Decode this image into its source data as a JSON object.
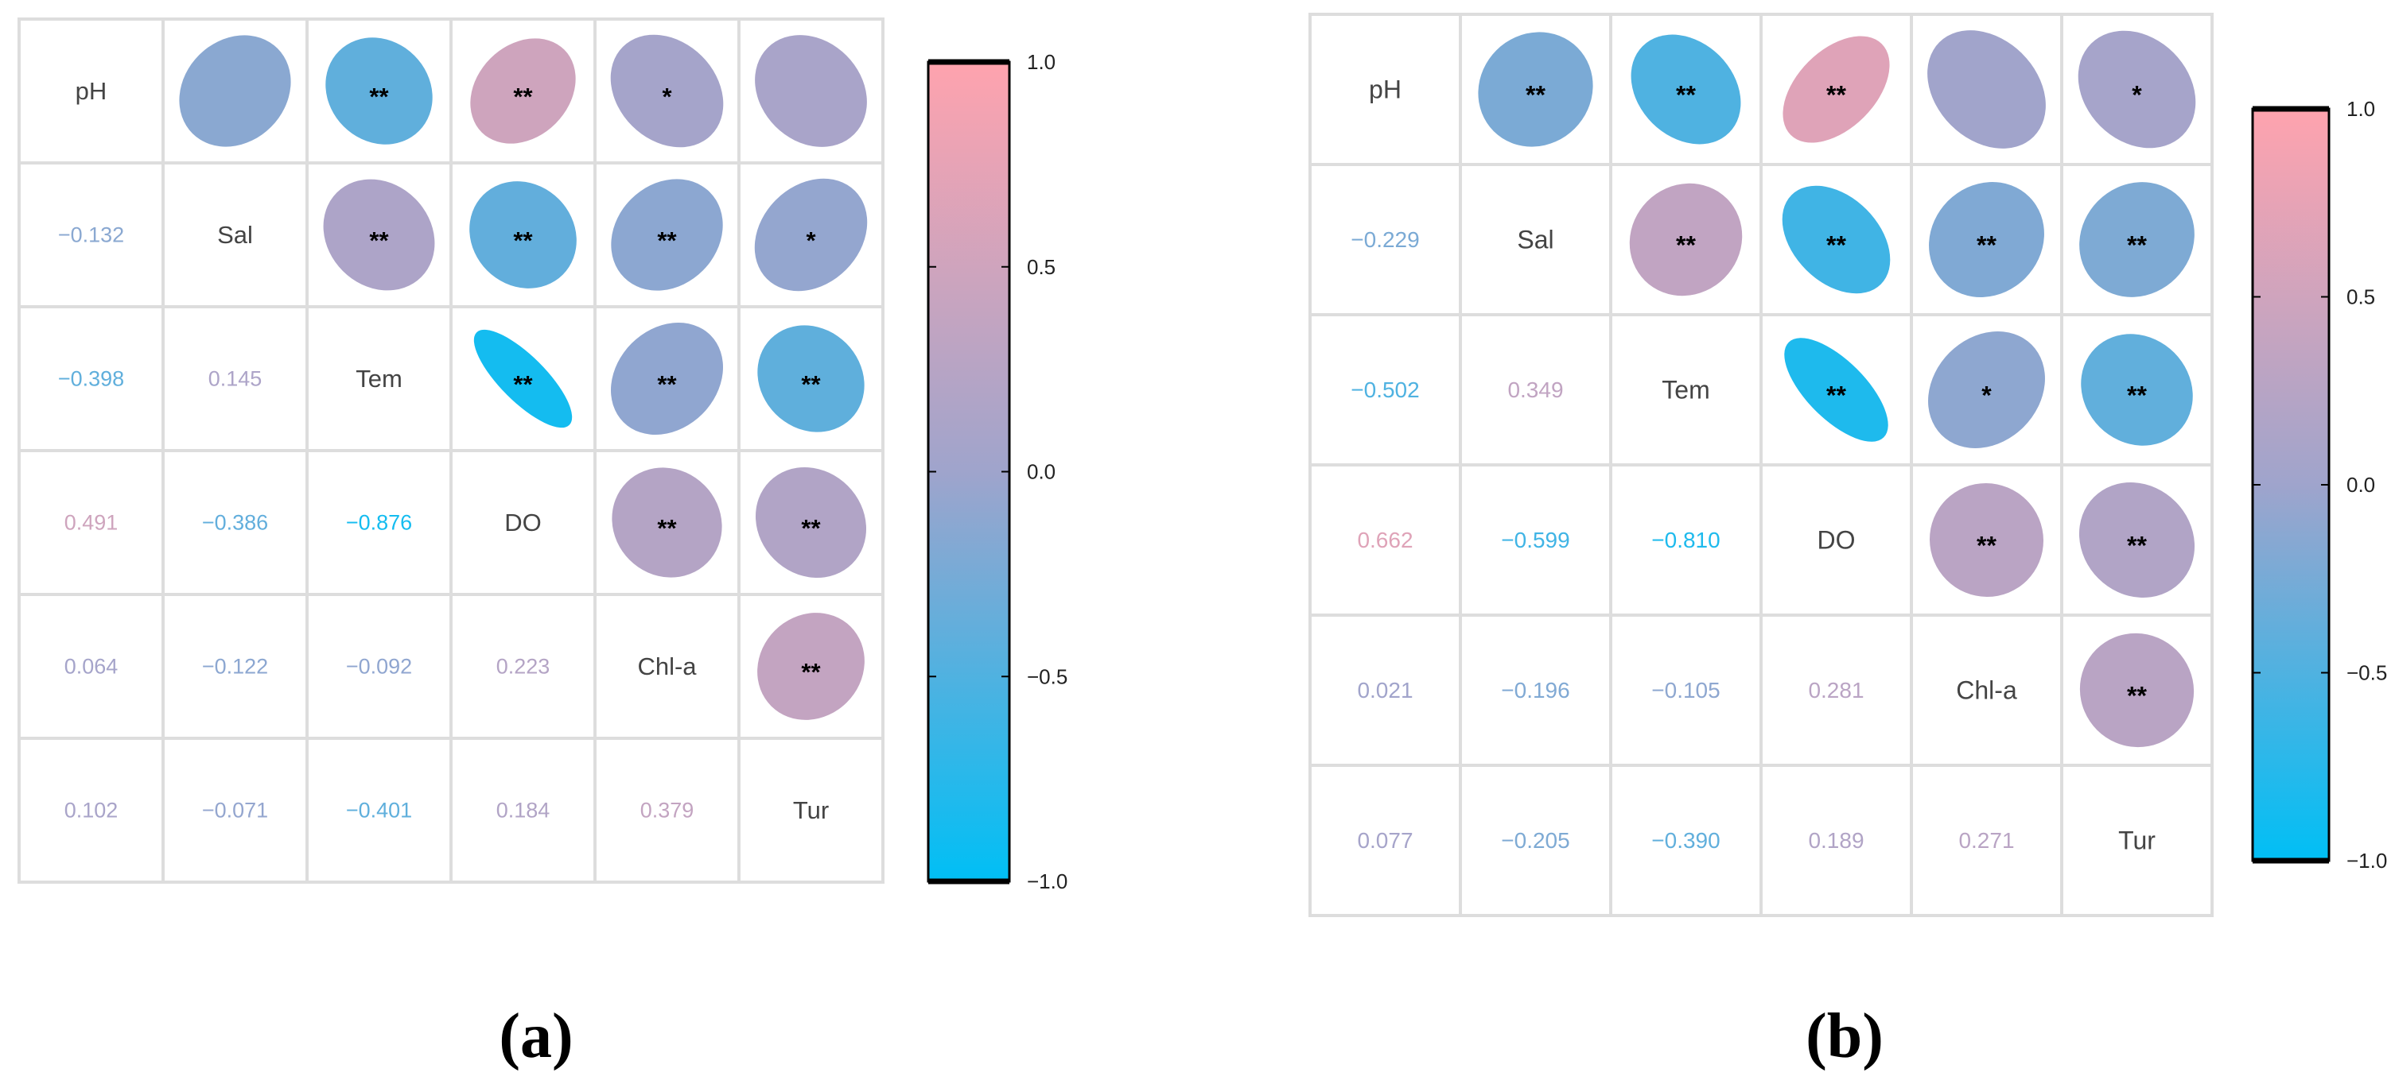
{
  "colors": {
    "negative": "#00BFF5",
    "neutral": "#9FA4CC",
    "positive": "#FFA3AE",
    "grid": "#DDDDDD",
    "diag_text": "#444444"
  },
  "chart_data": [
    {
      "type": "heatmap",
      "subtype": "correlation-matrix-ellipse",
      "panel_label": "(a)",
      "variables": [
        "pH",
        "Sal",
        "Tem",
        "DO",
        "Chl-a",
        "Tur"
      ],
      "lower_values": [
        [
          null,
          null,
          null,
          null,
          null,
          null
        ],
        [
          -0.132,
          null,
          null,
          null,
          null,
          null
        ],
        [
          -0.398,
          0.145,
          null,
          null,
          null,
          null
        ],
        [
          0.491,
          -0.386,
          -0.876,
          null,
          null,
          null
        ],
        [
          0.064,
          -0.122,
          -0.092,
          0.223,
          null,
          null
        ],
        [
          0.102,
          -0.071,
          -0.401,
          0.184,
          0.379,
          null
        ]
      ],
      "lower_labels": [
        [
          null,
          null,
          null,
          null,
          null,
          null
        ],
        [
          "−0.132",
          null,
          null,
          null,
          null,
          null
        ],
        [
          "−0.398",
          "0.145",
          null,
          null,
          null,
          null
        ],
        [
          "0.491",
          "−0.386",
          "−0.876",
          null,
          null,
          null
        ],
        [
          "0.064",
          "−0.122",
          "−0.092",
          "0.223",
          null,
          null
        ],
        [
          "0.102",
          "−0.071",
          "−0.401",
          "0.184",
          "0.379",
          null
        ]
      ],
      "upper_significance": [
        [
          null,
          "",
          "**",
          "**",
          "*",
          ""
        ],
        [
          null,
          null,
          "**",
          "**",
          "**",
          "*"
        ],
        [
          null,
          null,
          null,
          "**",
          "**",
          "**"
        ],
        [
          null,
          null,
          null,
          null,
          "**",
          "**"
        ],
        [
          null,
          null,
          null,
          null,
          null,
          "**"
        ],
        [
          null,
          null,
          null,
          null,
          null,
          null
        ]
      ],
      "colorbar": {
        "range": [
          -1.0,
          1.0
        ],
        "ticks": [
          1.0,
          0.5,
          0.0,
          -0.5,
          -1.0
        ],
        "tick_labels": [
          "1.0",
          "0.5",
          "0.0",
          "−0.5",
          "−1.0"
        ]
      }
    },
    {
      "type": "heatmap",
      "subtype": "correlation-matrix-ellipse",
      "panel_label": "(b)",
      "variables": [
        "pH",
        "Sal",
        "Tem",
        "DO",
        "Chl-a",
        "Tur"
      ],
      "lower_values": [
        [
          null,
          null,
          null,
          null,
          null,
          null
        ],
        [
          -0.229,
          null,
          null,
          null,
          null,
          null
        ],
        [
          -0.502,
          0.349,
          null,
          null,
          null,
          null
        ],
        [
          0.662,
          -0.599,
          -0.81,
          null,
          null,
          null
        ],
        [
          0.021,
          -0.196,
          -0.105,
          0.281,
          null,
          null
        ],
        [
          0.077,
          -0.205,
          -0.39,
          0.189,
          0.271,
          null
        ]
      ],
      "lower_labels": [
        [
          null,
          null,
          null,
          null,
          null,
          null
        ],
        [
          "−0.229",
          null,
          null,
          null,
          null,
          null
        ],
        [
          "−0.502",
          "0.349",
          null,
          null,
          null,
          null
        ],
        [
          "0.662",
          "−0.599",
          "−0.810",
          null,
          null,
          null
        ],
        [
          "0.021",
          "−0.196",
          "−0.105",
          "0.281",
          null,
          null
        ],
        [
          "0.077",
          "−0.205",
          "−0.390",
          "0.189",
          "0.271",
          null
        ]
      ],
      "upper_significance": [
        [
          null,
          "**",
          "**",
          "**",
          "",
          "*"
        ],
        [
          null,
          null,
          "**",
          "**",
          "**",
          "**"
        ],
        [
          null,
          null,
          null,
          "**",
          "*",
          "**"
        ],
        [
          null,
          null,
          null,
          null,
          "**",
          "**"
        ],
        [
          null,
          null,
          null,
          null,
          null,
          "**"
        ],
        [
          null,
          null,
          null,
          null,
          null,
          null
        ]
      ],
      "colorbar": {
        "range": [
          -1.0,
          1.0
        ],
        "ticks": [
          1.0,
          0.5,
          0.0,
          -0.5,
          -1.0
        ],
        "tick_labels": [
          "1.0",
          "0.5",
          "0.0",
          "−0.5",
          "−1.0"
        ]
      }
    }
  ]
}
